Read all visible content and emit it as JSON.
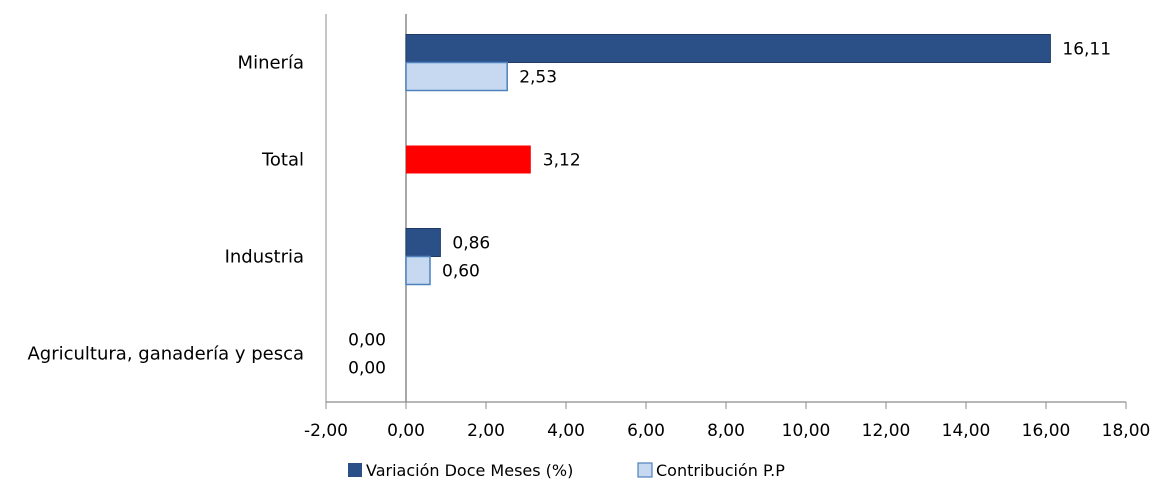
{
  "chart_data": {
    "type": "bar",
    "orientation": "horizontal",
    "categories": [
      "Minería",
      "Total",
      "Industria",
      "Agricultura, ganadería y pesca"
    ],
    "series": [
      {
        "name": "Variación Doce Meses (%)",
        "color": "#2b5088",
        "values": [
          16.11,
          null,
          0.86,
          0.0
        ],
        "labels": [
          "16,11",
          null,
          "0,86",
          "0,00"
        ]
      },
      {
        "name": "Contribución P.P",
        "color": "#c6d9f1",
        "stroke": "#4f81bd",
        "values": [
          2.53,
          null,
          0.6,
          0.0
        ],
        "labels": [
          "2,53",
          null,
          "0,60",
          "0,00"
        ]
      }
    ],
    "total": {
      "value": 3.12,
      "label": "3,12",
      "color": "#ff0000"
    },
    "xlim": [
      -2,
      18
    ],
    "ticks": [
      -2,
      0,
      2,
      4,
      6,
      8,
      10,
      12,
      14,
      16,
      18
    ],
    "tick_labels": [
      "-2,00",
      "0,00",
      "2,00",
      "4,00",
      "6,00",
      "8,00",
      "10,00",
      "12,00",
      "14,00",
      "16,00",
      "18,00"
    ],
    "legend_position": "bottom",
    "grid": false
  }
}
